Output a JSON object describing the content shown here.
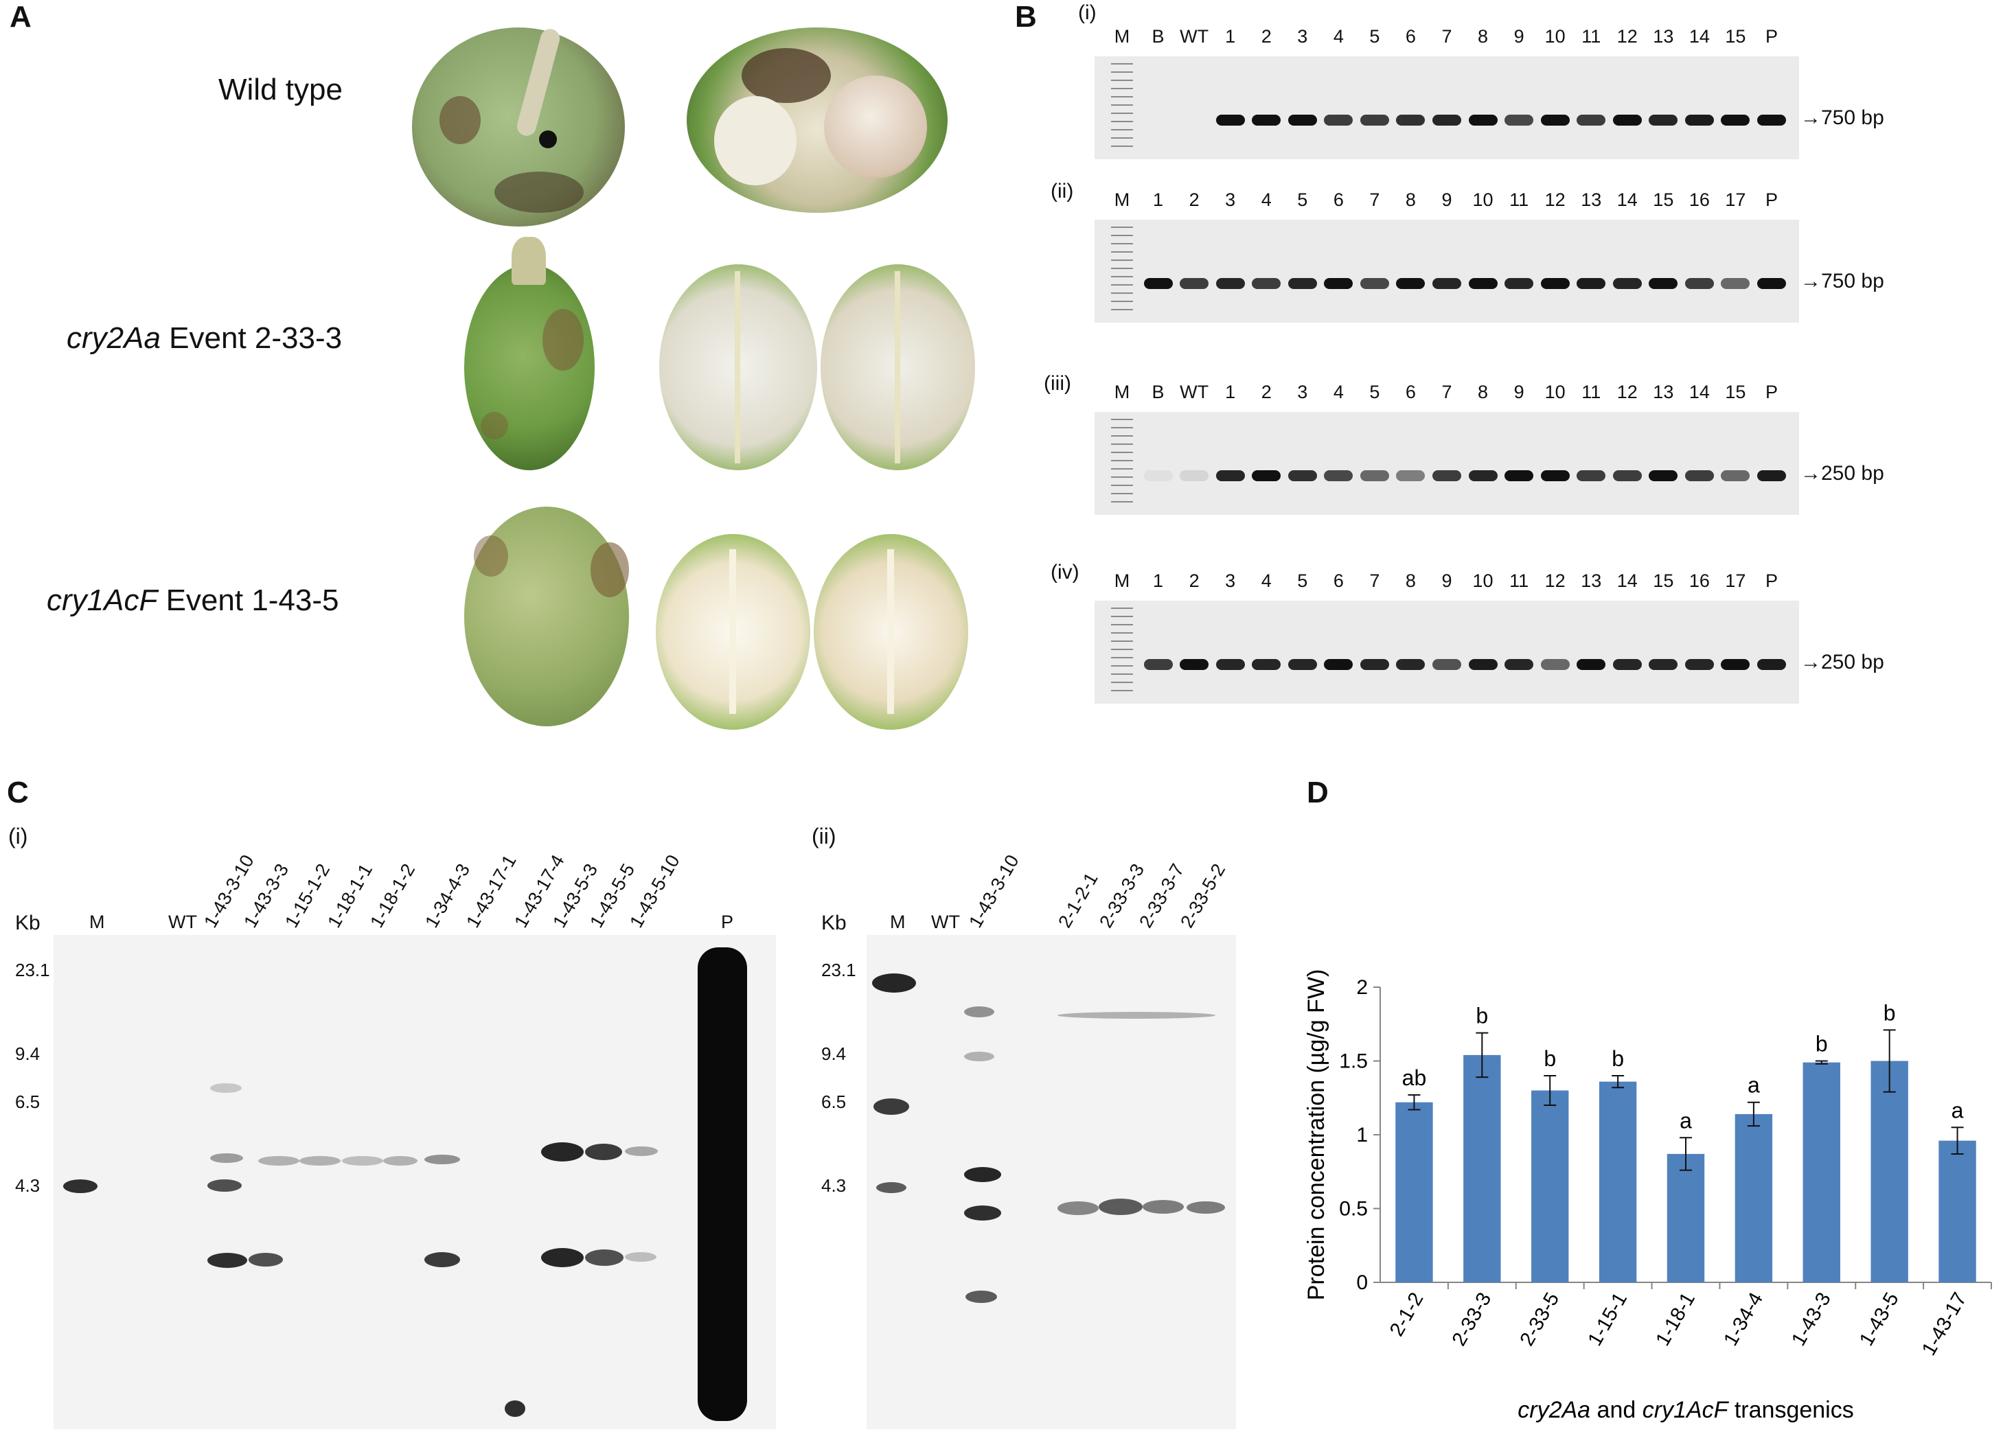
{
  "panel_labels": {
    "a": "A",
    "b": "B",
    "c": "C",
    "d": "D"
  },
  "panelA": {
    "rows": [
      {
        "name": "Wild type",
        "gene": "",
        "event": ""
      },
      {
        "name": "",
        "gene": "cry2Aa",
        "event": " Event 2-33-3"
      },
      {
        "name": "",
        "gene": "cry1AcF",
        "event": " Event 1-43-5"
      }
    ]
  },
  "panelB": {
    "gels": [
      {
        "tag": "(i)",
        "lanes": [
          "M",
          "B",
          "WT",
          "1",
          "2",
          "3",
          "4",
          "5",
          "6",
          "7",
          "8",
          "9",
          "10",
          "11",
          "12",
          "13",
          "14",
          "15",
          "P"
        ],
        "size": "750 bp"
      },
      {
        "tag": "(ii)",
        "lanes": [
          "M",
          "1",
          "2",
          "3",
          "4",
          "5",
          "6",
          "7",
          "8",
          "9",
          "10",
          "11",
          "12",
          "13",
          "14",
          "15",
          "16",
          "17",
          "P"
        ],
        "size": "750 bp"
      },
      {
        "tag": "(iii)",
        "lanes": [
          "M",
          "B",
          "WT",
          "1",
          "2",
          "3",
          "4",
          "5",
          "6",
          "7",
          "8",
          "9",
          "10",
          "11",
          "12",
          "13",
          "14",
          "15",
          "P"
        ],
        "size": "250 bp"
      },
      {
        "tag": "(iv)",
        "lanes": [
          "M",
          "1",
          "2",
          "3",
          "4",
          "5",
          "6",
          "7",
          "8",
          "9",
          "10",
          "11",
          "12",
          "13",
          "14",
          "15",
          "16",
          "17",
          "P"
        ],
        "size": "250 bp"
      }
    ]
  },
  "panelC": {
    "blot1": {
      "tag": "(i)",
      "kb_title": "Kb",
      "lanes_plain": [
        "M",
        "WT",
        "P"
      ],
      "lanes_rot": [
        "1-43-3-10",
        "1-43-3-3",
        "1-15-1-2",
        "1-18-1-1",
        "1-18-1-2",
        "1-34-4-3",
        "1-43-17-1",
        "1-43-17-4",
        "1-43-5-3",
        "1-43-5-5",
        "1-43-5-10"
      ],
      "kb": [
        "23.1",
        "9.4",
        "6.5",
        "4.3"
      ]
    },
    "blot2": {
      "tag": "(ii)",
      "kb_title": "Kb",
      "lanes_plain": [
        "M",
        "WT"
      ],
      "lanes_rot": [
        "1-43-3-10",
        "2-1-2-1",
        "2-33-3-3",
        "2-33-3-7",
        "2-33-5-2"
      ],
      "kb": [
        "23.1",
        "9.4",
        "6.5",
        "4.3"
      ]
    }
  },
  "chart_data": {
    "type": "bar",
    "categories": [
      "2-1-2",
      "2-33-3",
      "2-33-5",
      "1-15-1",
      "1-18-1",
      "1-34-4",
      "1-43-3",
      "1-43-5",
      "1-43-17"
    ],
    "values": [
      1.22,
      1.54,
      1.3,
      1.36,
      0.87,
      1.14,
      1.49,
      1.5,
      0.96
    ],
    "errors": [
      0.05,
      0.15,
      0.1,
      0.04,
      0.11,
      0.08,
      0.01,
      0.21,
      0.09
    ],
    "letters": [
      "ab",
      "b",
      "b",
      "b",
      "a",
      "a",
      "b",
      "b",
      "a"
    ],
    "ylabel": "Protein concentration (µg/g FW)",
    "xlabel_parts": [
      "cry2Aa",
      " and ",
      "cry1AcF",
      " transgenics"
    ],
    "ylim": [
      0,
      2
    ],
    "yticks": [
      "0",
      "0.5",
      "1",
      "1.5",
      "2"
    ],
    "bar_color": "#4f81bd",
    "grid": false
  }
}
